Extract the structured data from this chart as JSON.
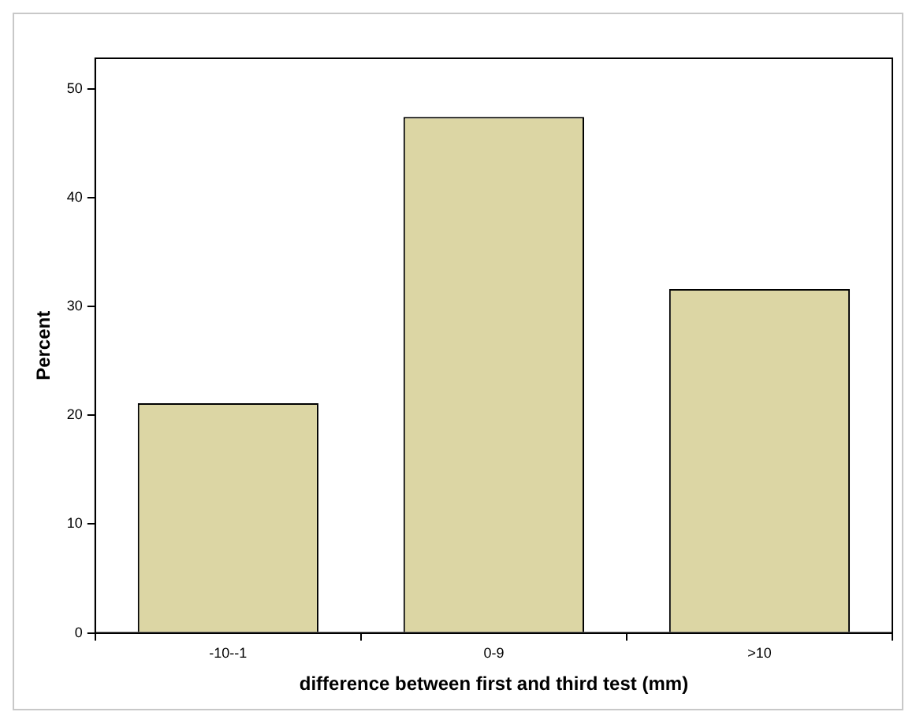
{
  "chart_data": {
    "type": "bar",
    "xlabel": "difference between first and third test (mm)",
    "ylabel": "Percent",
    "categories": [
      "-10--1",
      "0-9",
      ">10"
    ],
    "values": [
      21.1,
      47.4,
      31.6
    ],
    "color": "#dcd6a4",
    "ylim": [
      0,
      52.8
    ],
    "yticks": [
      0,
      10,
      20,
      30,
      40,
      50
    ],
    "grid": false,
    "legend": false
  }
}
